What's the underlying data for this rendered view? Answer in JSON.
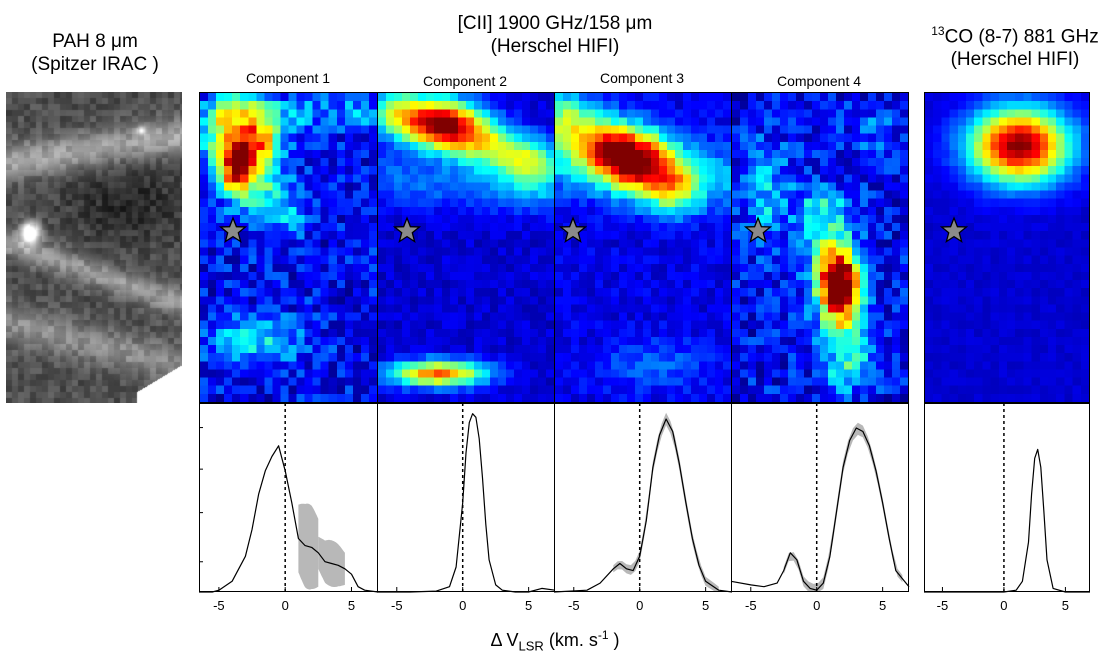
{
  "titles": {
    "pah_line1": "PAH 8 μm",
    "pah_line2": "(Spitzer IRAC )",
    "cii_line1": "[CII] 1900 GHz/158 μm",
    "cii_line2": "(Herschel HIFI)",
    "co_sup": "13",
    "co_line1": "CO (8-7) 881 GHz",
    "co_line2": "(Herschel HIFI)"
  },
  "components": [
    "Component 1",
    "Component 2",
    "Component 3",
    "Component 4"
  ],
  "xlabel": {
    "main": "Δ V",
    "sub": "LSR",
    "units": " (km. s",
    "sup": "-1",
    "close": " )"
  },
  "colors": {
    "profile_line": "#000000",
    "error_band": "#b8b8b8",
    "axis": "#000000"
  },
  "chart_data": [
    {
      "type": "line",
      "name": "Component 1",
      "xlim": [
        -6.5,
        7
      ],
      "ylim": [
        0,
        1.06
      ],
      "xticks": [
        -5,
        0,
        5
      ],
      "reference_line_x": 0,
      "error_band": [
        [
          1.0,
          2.5,
          0.38,
          0.48
        ],
        [
          2.5,
          4.5,
          0.18,
          0.26
        ]
      ],
      "x": [
        -6.5,
        -5.5,
        -5,
        -4,
        -3,
        -2.5,
        -2,
        -1.5,
        -1,
        -0.5,
        0,
        0.5,
        1,
        1.5,
        2,
        2.5,
        3,
        3.5,
        4,
        4.5,
        5,
        5.5,
        6,
        7
      ],
      "y": [
        0.0,
        0.0,
        0.01,
        0.06,
        0.2,
        0.35,
        0.55,
        0.68,
        0.76,
        0.82,
        0.68,
        0.5,
        0.3,
        0.26,
        0.25,
        0.22,
        0.17,
        0.16,
        0.15,
        0.13,
        0.1,
        0.03,
        0.01,
        0.0
      ]
    },
    {
      "type": "line",
      "name": "Component 2",
      "xlim": [
        -6.5,
        7
      ],
      "ylim": [
        0,
        1.06
      ],
      "xticks": [
        -5,
        0,
        5
      ],
      "reference_line_x": 0,
      "error_band": [],
      "x": [
        -6.5,
        -4,
        -2,
        -1,
        -0.5,
        0,
        0.25,
        0.5,
        0.75,
        1,
        1.25,
        1.5,
        1.75,
        2,
        2.5,
        3,
        4,
        5,
        6,
        7
      ],
      "y": [
        0.0,
        0.0,
        0.005,
        0.03,
        0.14,
        0.5,
        0.78,
        0.95,
        1.0,
        0.98,
        0.86,
        0.64,
        0.38,
        0.18,
        0.04,
        0.01,
        0.0,
        0.0,
        0.02,
        0.01
      ]
    },
    {
      "type": "line",
      "name": "Component 3",
      "xlim": [
        -6.5,
        7
      ],
      "ylim": [
        0,
        1.06
      ],
      "xticks": [
        -5,
        0,
        5
      ],
      "reference_line_x": 0,
      "error_band": [
        [
          -2.0,
          6.0,
          0.04,
          0.07
        ]
      ],
      "x": [
        -6.5,
        -4,
        -3,
        -2,
        -1.5,
        -1,
        -0.5,
        0,
        0.5,
        1,
        1.5,
        2,
        2.5,
        3,
        3.5,
        4,
        4.5,
        5,
        6,
        7
      ],
      "y": [
        0.0,
        0.01,
        0.05,
        0.13,
        0.16,
        0.13,
        0.12,
        0.2,
        0.4,
        0.7,
        0.88,
        0.97,
        0.9,
        0.72,
        0.5,
        0.3,
        0.15,
        0.06,
        0.01,
        0.0
      ]
    },
    {
      "type": "line",
      "name": "Component 4",
      "xlim": [
        -6.5,
        7
      ],
      "ylim": [
        0,
        1.06
      ],
      "xticks": [
        -5,
        0,
        5
      ],
      "reference_line_x": 0,
      "error_band": [
        [
          -2.5,
          6.5,
          0.04,
          0.07
        ]
      ],
      "x": [
        -6.5,
        -5,
        -4,
        -3,
        -2.5,
        -2,
        -1.5,
        -1,
        -0.5,
        0,
        0.5,
        1,
        1.5,
        2,
        2.5,
        3,
        3.5,
        4,
        4.5,
        5,
        5.5,
        6,
        7
      ],
      "y": [
        0.06,
        0.04,
        0.03,
        0.05,
        0.12,
        0.22,
        0.18,
        0.06,
        0.02,
        0.01,
        0.05,
        0.2,
        0.45,
        0.7,
        0.85,
        0.92,
        0.9,
        0.82,
        0.68,
        0.5,
        0.3,
        0.12,
        0.03
      ]
    },
    {
      "type": "line",
      "name": "13CO (8-7)",
      "xlim": [
        -6.5,
        7
      ],
      "ylim": [
        0,
        1.06
      ],
      "xticks": [
        -5,
        0,
        5
      ],
      "reference_line_x": 0,
      "error_band": [],
      "x": [
        -6.5,
        -2,
        0,
        1,
        1.5,
        2,
        2.25,
        2.5,
        2.75,
        3,
        3.25,
        3.5,
        4,
        5,
        7
      ],
      "y": [
        0.0,
        0.0,
        0.0,
        0.01,
        0.06,
        0.28,
        0.55,
        0.75,
        0.8,
        0.7,
        0.45,
        0.18,
        0.02,
        0.0,
        0.0
      ]
    }
  ]
}
